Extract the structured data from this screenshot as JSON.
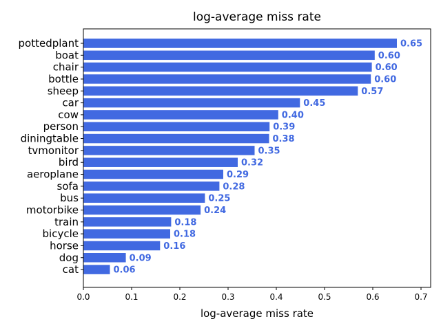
{
  "chart_data": {
    "type": "bar",
    "orientation": "horizontal",
    "title": "log-average miss rate",
    "xlabel": "log-average miss rate",
    "ylabel": "",
    "xlim": [
      0,
      0.72
    ],
    "xticks": [
      "0.0",
      "0.1",
      "0.2",
      "0.3",
      "0.4",
      "0.5",
      "0.6",
      "0.7"
    ],
    "bar_color": "#4169e1",
    "label_color": "#4169e1",
    "grid": false,
    "categories": [
      "pottedplant",
      "boat",
      "chair",
      "bottle",
      "sheep",
      "car",
      "cow",
      "person",
      "diningtable",
      "tvmonitor",
      "bird",
      "aeroplane",
      "sofa",
      "bus",
      "motorbike",
      "train",
      "bicycle",
      "horse",
      "dog",
      "cat"
    ],
    "values": [
      0.65,
      0.604,
      0.598,
      0.596,
      0.569,
      0.449,
      0.404,
      0.386,
      0.385,
      0.355,
      0.32,
      0.29,
      0.282,
      0.252,
      0.243,
      0.182,
      0.18,
      0.159,
      0.088,
      0.055
    ],
    "data_labels": [
      "0.65",
      "0.60",
      "0.60",
      "0.60",
      "0.57",
      "0.45",
      "0.40",
      "0.39",
      "0.38",
      "0.35",
      "0.32",
      "0.29",
      "0.28",
      "0.25",
      "0.24",
      "0.18",
      "0.18",
      "0.16",
      "0.09",
      "0.06"
    ]
  }
}
